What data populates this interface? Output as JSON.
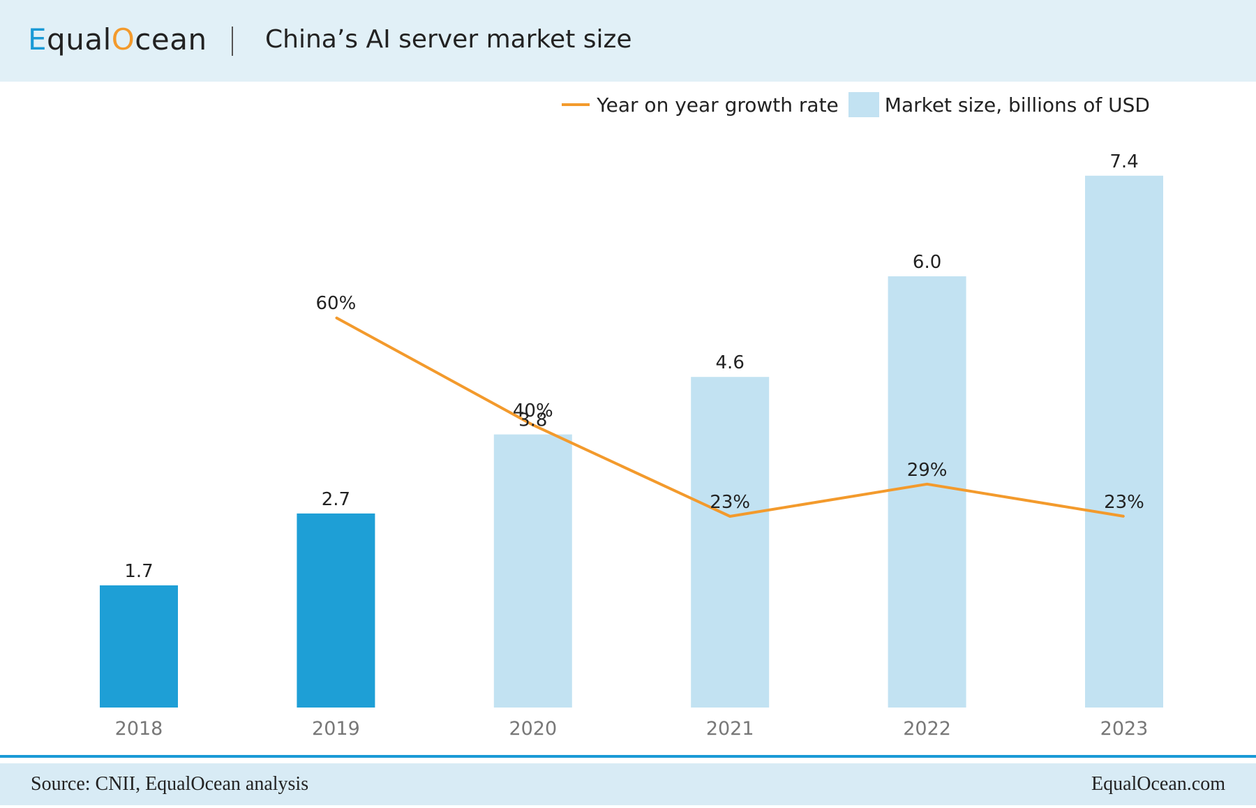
{
  "header": {
    "brand_prefix": "E",
    "brand_mid": "qual",
    "brand_ring": "O",
    "brand_suffix": "cean",
    "title": "China’s AI server market size"
  },
  "legend": {
    "line_label": "Year on year growth rate",
    "bar_label": "Market size, billions of USD"
  },
  "footer": {
    "source": "Source: CNII,  EqualOcean analysis",
    "site": "EqualOcean.com"
  },
  "colors": {
    "bar_actual": "#1e9fd6",
    "bar_forecast": "#c2e2f2",
    "line": "#f39a2c",
    "accent": "#1a9ad6",
    "header_bg": "#e1f0f7",
    "footer_bg": "#d8ebf5"
  },
  "chart_data": {
    "type": "bar",
    "categories": [
      "2018",
      "2019",
      "2020",
      "2021",
      "2022",
      "2023"
    ],
    "series": [
      {
        "name": "Market size, billions of USD",
        "type": "bar",
        "values": [
          1.7,
          2.7,
          3.8,
          4.6,
          6.0,
          7.4
        ],
        "labels": [
          "1.7",
          "2.7",
          "3.8",
          "4.6",
          "6.0",
          "7.4"
        ],
        "forecast": [
          false,
          false,
          true,
          true,
          true,
          true
        ]
      },
      {
        "name": "Year on year growth rate",
        "type": "line",
        "values": [
          null,
          60,
          40,
          23,
          29,
          23
        ],
        "labels": [
          "",
          "60%",
          "40%",
          "23%",
          "29%",
          "23%"
        ]
      }
    ],
    "title": "China’s AI server market size",
    "xlabel": "",
    "ylabel": "",
    "grid": false,
    "legend_position": "top-right"
  }
}
